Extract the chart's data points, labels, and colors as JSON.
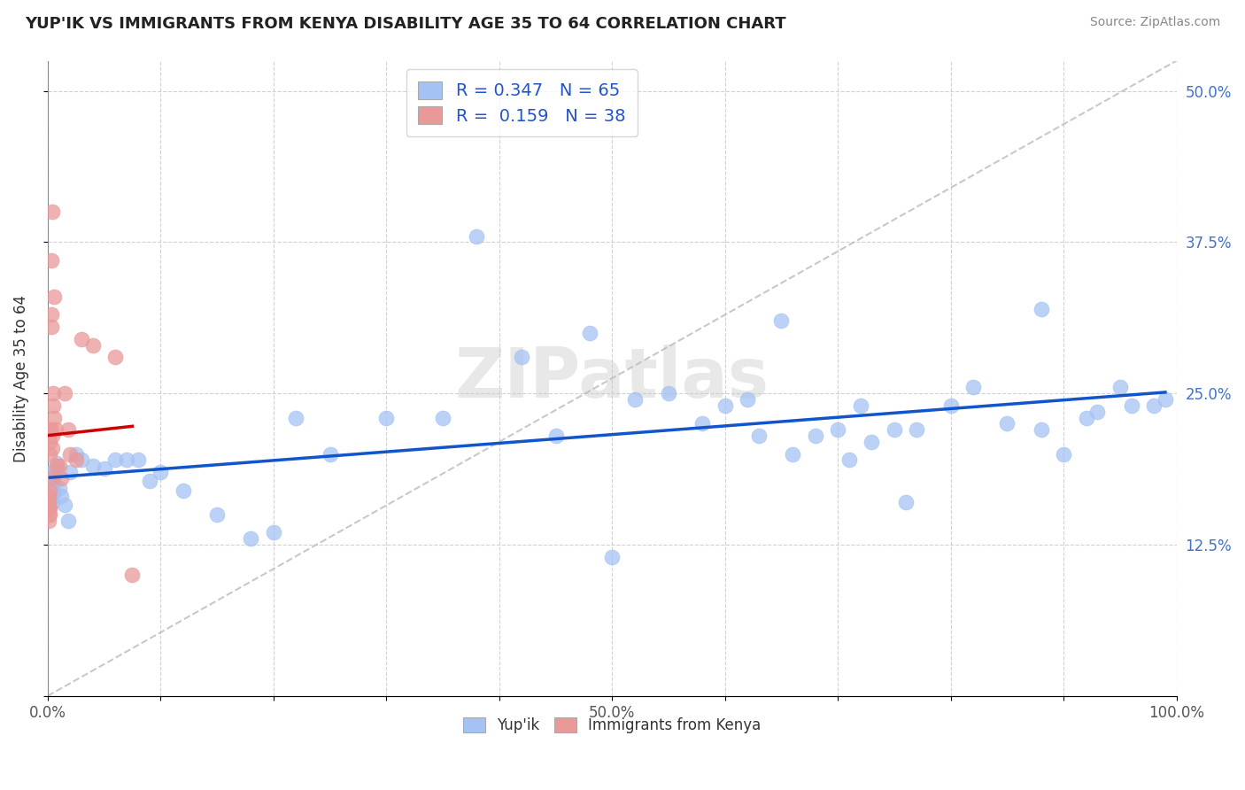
{
  "title": "YUP'IK VS IMMIGRANTS FROM KENYA DISABILITY AGE 35 TO 64 CORRELATION CHART",
  "source": "Source: ZipAtlas.com",
  "ylabel": "Disability Age 35 to 64",
  "xlim": [
    0.0,
    1.0
  ],
  "ylim": [
    0.0,
    0.525
  ],
  "xticks": [
    0.0,
    0.1,
    0.2,
    0.3,
    0.4,
    0.5,
    0.6,
    0.7,
    0.8,
    0.9,
    1.0
  ],
  "xticklabels": [
    "0.0%",
    "",
    "",
    "",
    "",
    "50.0%",
    "",
    "",
    "",
    "",
    "100.0%"
  ],
  "ytick_positions": [
    0.0,
    0.125,
    0.25,
    0.375,
    0.5
  ],
  "ytick_labels": [
    "",
    "12.5%",
    "25.0%",
    "37.5%",
    "50.0%"
  ],
  "R_blue": 0.347,
  "N_blue": 65,
  "R_pink": 0.159,
  "N_pink": 38,
  "blue_color": "#a4c2f4",
  "pink_color": "#ea9999",
  "blue_line_color": "#1155cc",
  "pink_line_color": "#cc0000",
  "watermark": "ZIPatlas",
  "blue_scatter_x": [
    0.002,
    0.003,
    0.003,
    0.004,
    0.004,
    0.005,
    0.006,
    0.006,
    0.007,
    0.008,
    0.01,
    0.012,
    0.015,
    0.018,
    0.02,
    0.025,
    0.03,
    0.04,
    0.05,
    0.06,
    0.07,
    0.08,
    0.09,
    0.1,
    0.12,
    0.15,
    0.18,
    0.2,
    0.22,
    0.25,
    0.3,
    0.35,
    0.38,
    0.42,
    0.45,
    0.48,
    0.5,
    0.52,
    0.55,
    0.58,
    0.6,
    0.62,
    0.63,
    0.65,
    0.66,
    0.68,
    0.7,
    0.71,
    0.72,
    0.73,
    0.75,
    0.76,
    0.77,
    0.8,
    0.82,
    0.85,
    0.88,
    0.88,
    0.9,
    0.92,
    0.93,
    0.95,
    0.96,
    0.98,
    0.99
  ],
  "blue_scatter_y": [
    0.175,
    0.165,
    0.185,
    0.16,
    0.17,
    0.178,
    0.182,
    0.168,
    0.188,
    0.192,
    0.172,
    0.165,
    0.158,
    0.145,
    0.185,
    0.2,
    0.195,
    0.19,
    0.188,
    0.195,
    0.195,
    0.195,
    0.178,
    0.185,
    0.17,
    0.15,
    0.13,
    0.135,
    0.23,
    0.2,
    0.23,
    0.23,
    0.38,
    0.28,
    0.215,
    0.3,
    0.115,
    0.245,
    0.25,
    0.225,
    0.24,
    0.245,
    0.215,
    0.31,
    0.2,
    0.215,
    0.22,
    0.195,
    0.24,
    0.21,
    0.22,
    0.16,
    0.22,
    0.24,
    0.255,
    0.225,
    0.22,
    0.32,
    0.2,
    0.23,
    0.235,
    0.255,
    0.24,
    0.24,
    0.245
  ],
  "pink_scatter_x": [
    0.001,
    0.001,
    0.001,
    0.001,
    0.001,
    0.001,
    0.001,
    0.001,
    0.002,
    0.002,
    0.002,
    0.002,
    0.002,
    0.002,
    0.003,
    0.003,
    0.003,
    0.003,
    0.003,
    0.004,
    0.004,
    0.004,
    0.005,
    0.005,
    0.006,
    0.006,
    0.007,
    0.008,
    0.01,
    0.012,
    0.015,
    0.018,
    0.02,
    0.025,
    0.03,
    0.04,
    0.06,
    0.075
  ],
  "pink_scatter_y": [
    0.155,
    0.16,
    0.165,
    0.15,
    0.145,
    0.155,
    0.16,
    0.165,
    0.17,
    0.155,
    0.15,
    0.22,
    0.21,
    0.2,
    0.18,
    0.22,
    0.305,
    0.315,
    0.36,
    0.205,
    0.215,
    0.4,
    0.25,
    0.24,
    0.23,
    0.33,
    0.22,
    0.19,
    0.19,
    0.18,
    0.25,
    0.22,
    0.2,
    0.195,
    0.295,
    0.29,
    0.28,
    0.1
  ]
}
